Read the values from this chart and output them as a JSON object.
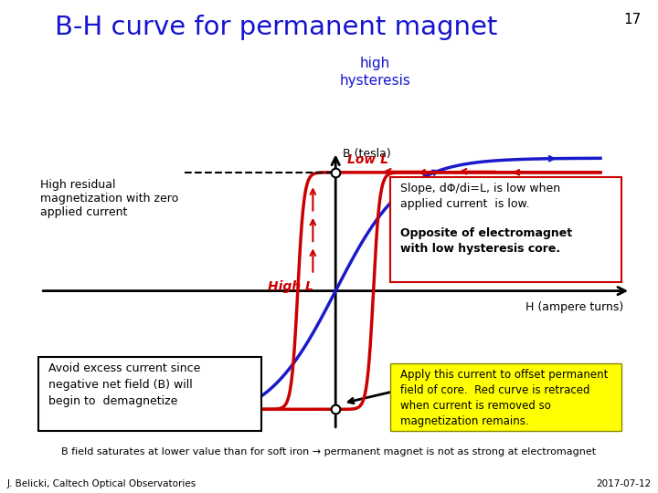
{
  "title": "B-H curve for permanent magnet",
  "subtitle": "high\nhysteresis",
  "title_color": "#1515d0",
  "subtitle_color": "#1515d0",
  "page_number": "17",
  "background_color": "#ffffff",
  "xlabel": "H (ampere turns)",
  "ylabel": "B (tesla)",
  "footer_left": "J. Belicki, Caltech Optical Observatories",
  "footer_right": "2017-07-12",
  "bottom_note": "B field saturates at lower value than for soft iron → permanent magnet is not as strong at electromagnet",
  "annotation_high_residual": "High residual\nmagnetization with zero\napplied current",
  "annotation_avoid": "Avoid excess current since\nnegative net field (B) will\nbegin to  demagnetize",
  "annotation_slope_normal": "Slope, dΦ/di=L, is low when\napplied current  is low.",
  "annotation_slope_bold": "Opposite of electromagnet\nwith low hysteresis core.",
  "annotation_apply": "Apply this current to offset permanent\nfield of core.  Red curve is retraced\nwhen current is removed so\nmagnetization remains.",
  "label_low_l": "Low L",
  "label_high_l": "High L",
  "red_color": "#cc0000",
  "blue_color": "#1a1acc",
  "black_color": "#000000",
  "xlim": [
    -8,
    8
  ],
  "ylim": [
    -7,
    7
  ]
}
